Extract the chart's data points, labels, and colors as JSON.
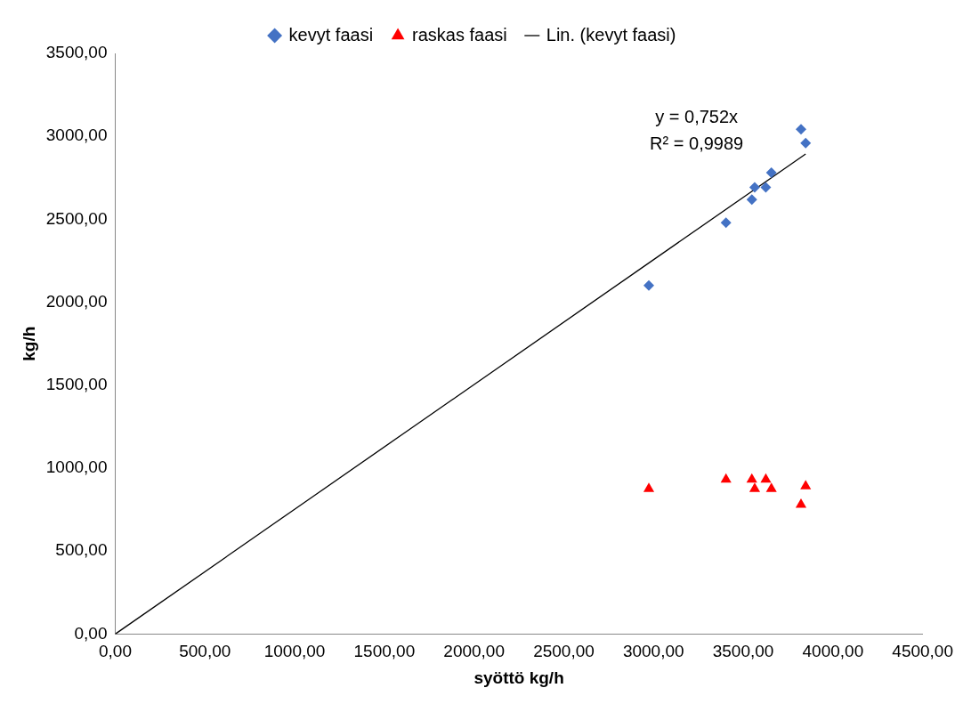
{
  "chart_data": {
    "type": "scatter",
    "xlabel": "syöttö kg/h",
    "ylabel": "kg/h",
    "legend": "top",
    "grid": false,
    "xlim": [
      0,
      4500
    ],
    "ylim": [
      0,
      3500
    ],
    "xticks": [
      {
        "value": 0,
        "label": "0,00"
      },
      {
        "value": 500,
        "label": "500,00"
      },
      {
        "value": 1000,
        "label": "1000,00"
      },
      {
        "value": 1500,
        "label": "1500,00"
      },
      {
        "value": 2000,
        "label": "2000,00"
      },
      {
        "value": 2500,
        "label": "2500,00"
      },
      {
        "value": 3000,
        "label": "3000,00"
      },
      {
        "value": 3500,
        "label": "3500,00"
      },
      {
        "value": 4000,
        "label": "4000,00"
      },
      {
        "value": 4500,
        "label": "4500,00"
      }
    ],
    "yticks": [
      {
        "value": 0,
        "label": "0,00"
      },
      {
        "value": 500,
        "label": "500,00"
      },
      {
        "value": 1000,
        "label": "1000,00"
      },
      {
        "value": 1500,
        "label": "1500,00"
      },
      {
        "value": 2000,
        "label": "2000,00"
      },
      {
        "value": 2500,
        "label": "2500,00"
      },
      {
        "value": 3000,
        "label": "3000,00"
      },
      {
        "value": 3500,
        "label": "3500,00"
      }
    ],
    "series": [
      {
        "name": "kevyt faasi",
        "marker": "diamond",
        "color": "#4472c4",
        "x": [
          2974,
          3404,
          3548,
          3564,
          3626,
          3657,
          3822,
          3848
        ],
        "values": [
          2101,
          2480,
          2619,
          2692,
          2692,
          2781,
          3043,
          2959
        ]
      },
      {
        "name": "raskas faasi",
        "marker": "triangle",
        "color": "#ff0000",
        "x": [
          2974,
          3404,
          3548,
          3564,
          3626,
          3657,
          3822,
          3848
        ],
        "values": [
          875,
          931,
          931,
          875,
          931,
          875,
          780,
          892
        ]
      },
      {
        "name": "Lin. (kevyt faasi)",
        "type": "line",
        "marker": "none",
        "line_style": "solid",
        "color": "#000000",
        "x": [
          0,
          3848
        ],
        "values": [
          0,
          2894
        ]
      }
    ],
    "annotations": [
      "y = 0,752x",
      "R² = 0,9989"
    ]
  }
}
